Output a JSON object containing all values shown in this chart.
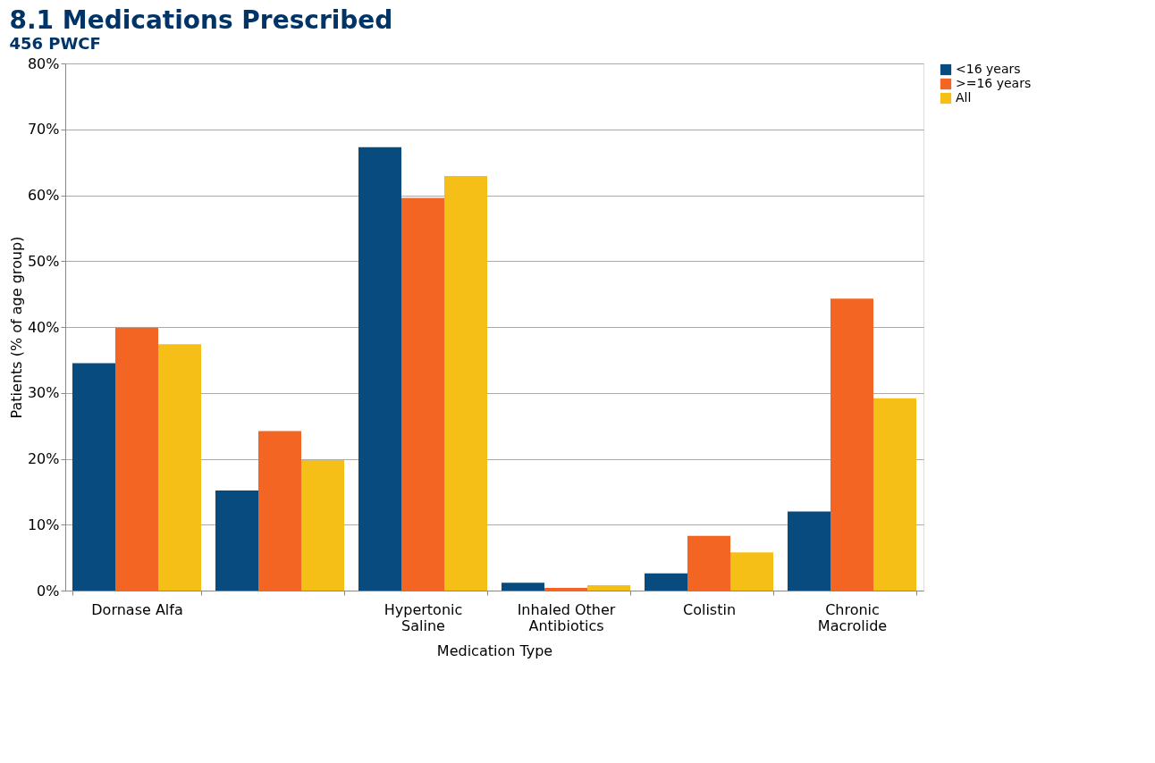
{
  "chart_data": {
    "type": "bar",
    "title": "8.1 Medications Prescribed",
    "subtitle": "456 PWCF",
    "xlabel": "Medication Type",
    "ylabel": "Patients (% of age group)",
    "categories": [
      "Dornase Alfa",
      null,
      "Hypertonic Saline",
      "Inhaled Other Antibiotics",
      "Colistin",
      "Chronic Macrolide"
    ],
    "series": [
      {
        "name": "<16 years",
        "color": "#084c7f",
        "values": [
          34.5,
          15.2,
          67.3,
          1.2,
          2.6,
          12.0
        ]
      },
      {
        "name": ">=16 years",
        "color": "#f26522",
        "values": [
          39.9,
          24.2,
          59.6,
          0.4,
          8.3,
          44.3
        ]
      },
      {
        "name": "All",
        "color": "#f5bf18",
        "values": [
          37.4,
          19.8,
          62.9,
          0.8,
          5.8,
          29.2
        ]
      }
    ],
    "ylim": [
      0,
      80
    ],
    "yticks": [
      {
        "value": 0,
        "label": "0%"
      },
      {
        "value": 10,
        "label": "10%"
      },
      {
        "value": 20,
        "label": "20%"
      },
      {
        "value": 30,
        "label": "30%"
      },
      {
        "value": 40,
        "label": "40%"
      },
      {
        "value": 50,
        "label": "50%"
      },
      {
        "value": 60,
        "label": "60%"
      },
      {
        "value": 70,
        "label": "70%"
      },
      {
        "value": 80,
        "label": "80%"
      }
    ],
    "grid": "y",
    "legend": "right"
  }
}
